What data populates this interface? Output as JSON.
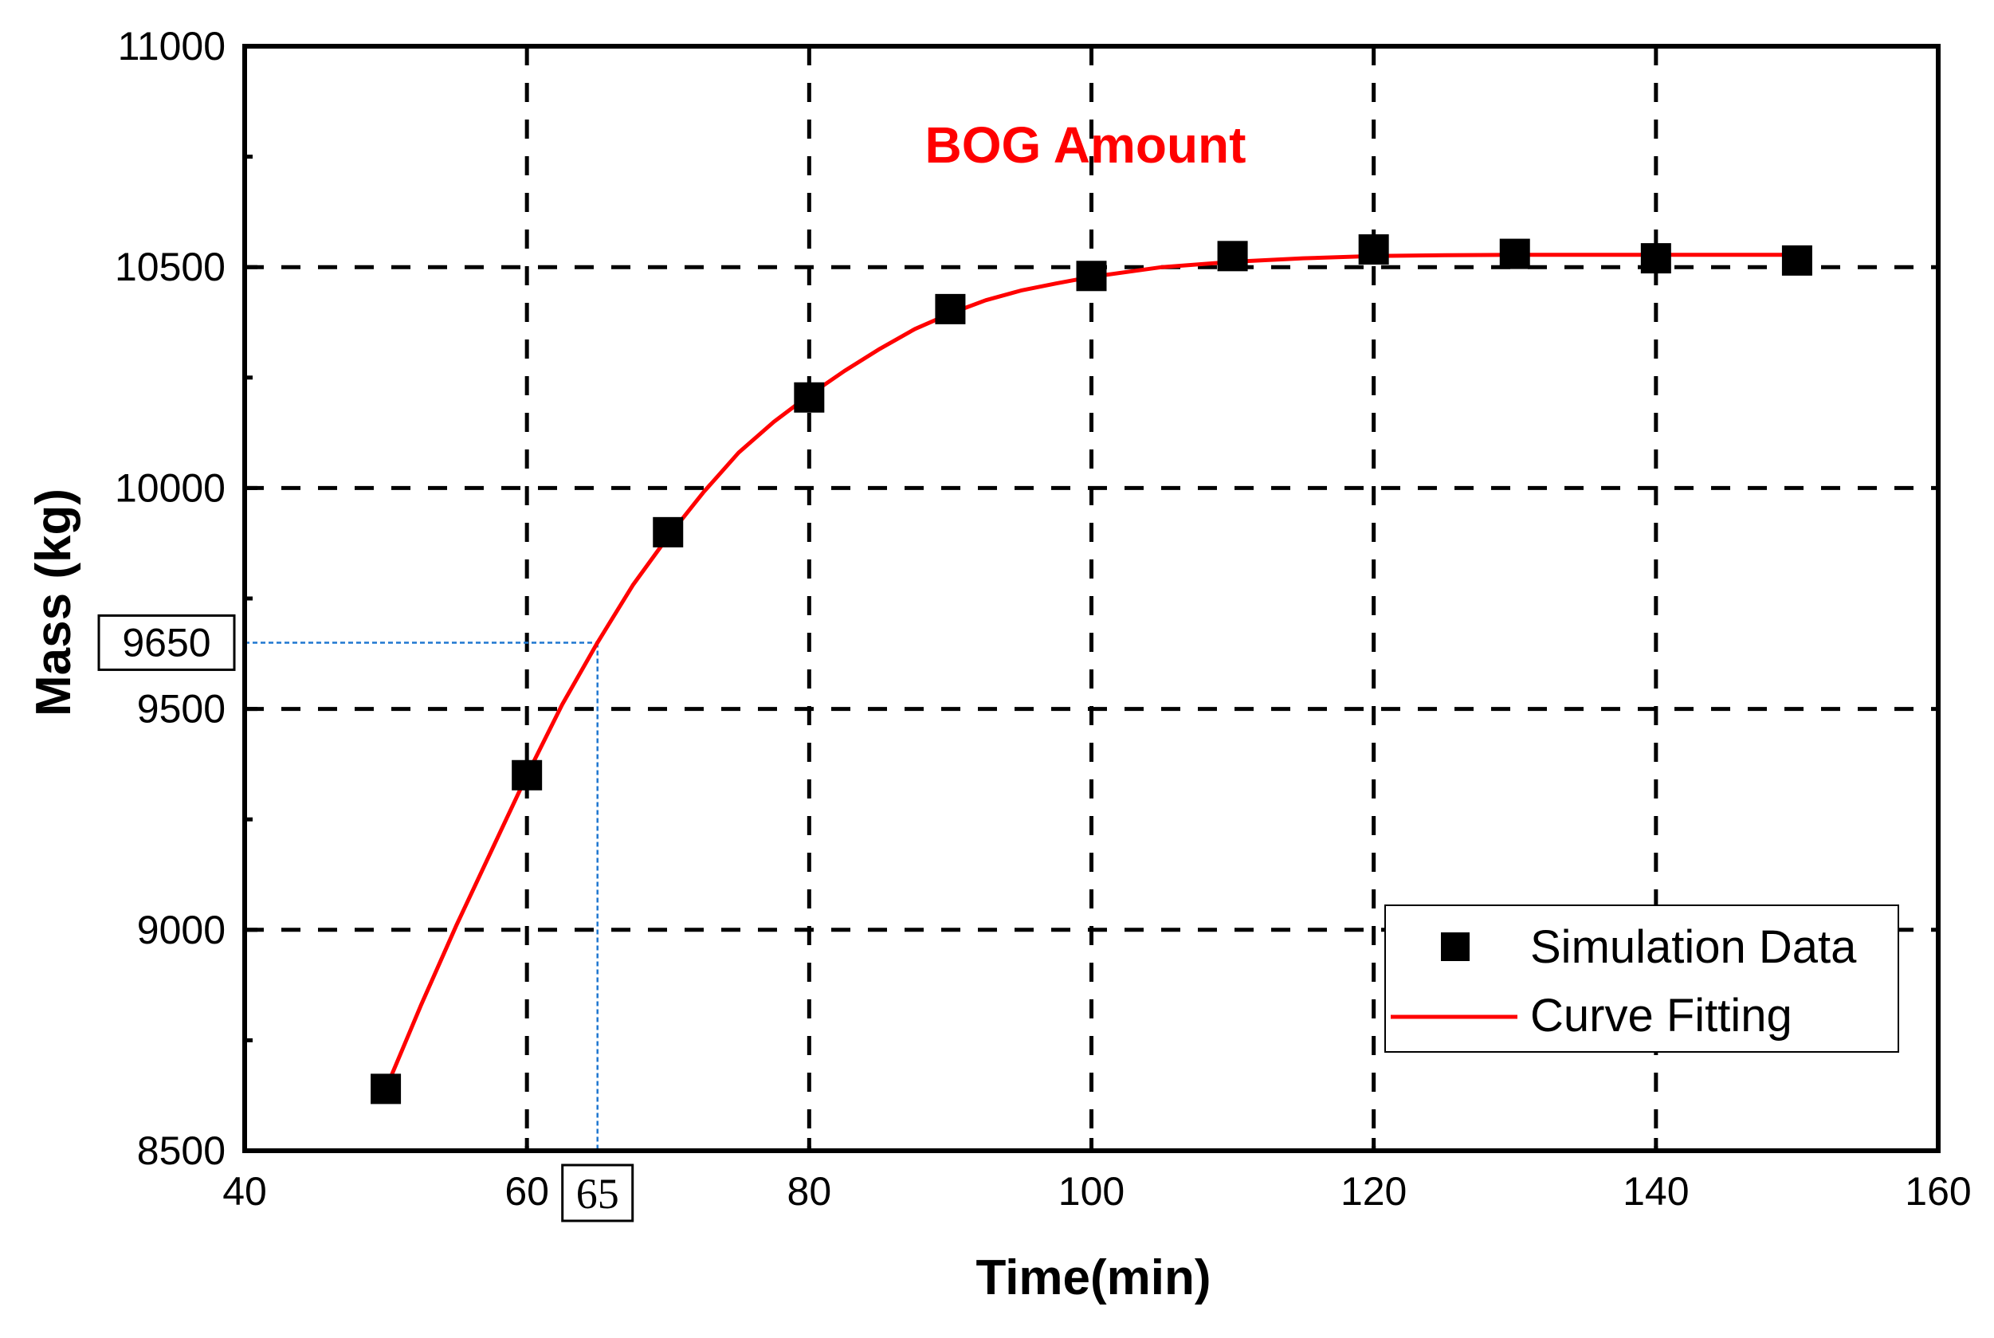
{
  "chart_data": {
    "type": "scatter",
    "title": "BOG Amount",
    "xlabel": "Time(min)",
    "ylabel": "Mass (kg)",
    "xlim": [
      40,
      160
    ],
    "ylim": [
      8500,
      11000
    ],
    "x_ticks": [
      40,
      60,
      80,
      100,
      120,
      140,
      160
    ],
    "x_tick_labels": [
      "40",
      "60",
      "80",
      "100",
      "120",
      "140",
      "160"
    ],
    "y_ticks": [
      8500,
      9000,
      9500,
      10000,
      10500,
      11000
    ],
    "y_tick_labels": [
      "8500",
      "9000",
      "9500",
      "10000",
      "10500",
      "11000"
    ],
    "grid": true,
    "legend_position": "bottom-right",
    "series": [
      {
        "name": "Simulation Data",
        "kind": "scatter",
        "marker": "square",
        "color": "#000000",
        "x": [
          50,
          60,
          70,
          80,
          90,
          100,
          110,
          120,
          130,
          140,
          150
        ],
        "y": [
          8640,
          9350,
          9900,
          10205,
          10405,
          10480,
          10525,
          10540,
          10530,
          10520,
          10515
        ]
      },
      {
        "name": "Curve Fitting",
        "kind": "line",
        "color": "#ff0000",
        "x": [
          50,
          52.5,
          55,
          57.5,
          60,
          62.5,
          65,
          67.5,
          70,
          72.5,
          75,
          77.5,
          80,
          82.5,
          85,
          87.5,
          90,
          92.5,
          95,
          97.5,
          100,
          105,
          110,
          115,
          120,
          125,
          130,
          135,
          140,
          145,
          150
        ],
        "y": [
          8640,
          8830,
          9010,
          9180,
          9350,
          9510,
          9650,
          9780,
          9890,
          9990,
          10080,
          10150,
          10210,
          10265,
          10315,
          10360,
          10395,
          10425,
          10447,
          10463,
          10478,
          10500,
          10512,
          10520,
          10525,
          10527,
          10528,
          10528,
          10528,
          10528,
          10528
        ]
      }
    ],
    "annotations": {
      "highlight_x": 65,
      "highlight_y": 9650,
      "highlight_x_label": "65",
      "highlight_y_label": "9650",
      "guide_color": "#1f77d0"
    },
    "colors": {
      "title": "#ff0000",
      "grid": "#000000",
      "axes": "#000000"
    }
  }
}
